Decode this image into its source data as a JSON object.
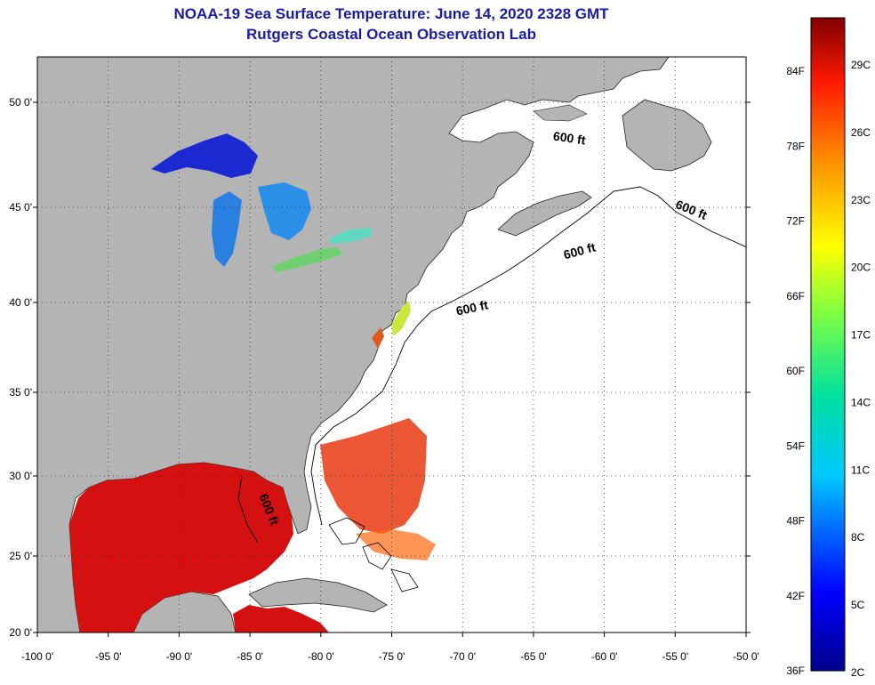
{
  "header": {
    "title": "NOAA-19 Sea Surface Temperature:  June 14, 2020 2328 GMT",
    "subtitle": "Rutgers Coastal Ocean Observation Lab"
  },
  "map": {
    "lon_ticks": [
      "-100 0'",
      "-95 0'",
      "-90 0'",
      "-85 0'",
      "-80 0'",
      "-75 0'",
      "-70 0'",
      "-65 0'",
      "-60 0'",
      "-55 0'",
      "-50 0'"
    ],
    "lat_ticks": [
      "50 0'",
      "45 0'",
      "40 0'",
      "35 0'",
      "30 0'",
      "25 0'",
      "20 0'"
    ],
    "contour_labels": [
      "600 ft",
      "600 ft",
      "600 ft",
      "600 ft",
      "600 ft"
    ]
  },
  "colorbar": {
    "fahrenheit": [
      "84F",
      "78F",
      "72F",
      "66F",
      "60F",
      "54F",
      "48F",
      "42F",
      "36F"
    ],
    "celsius": [
      "29C",
      "26C",
      "23C",
      "20C",
      "17C",
      "14C",
      "11C",
      "8C",
      "5C",
      "2C"
    ]
  },
  "colors": {
    "land": "#b4b4b4",
    "ocean": "#ffffff",
    "title": "#1a1aa6",
    "warm": "#e01010",
    "cold": "#0a1a9e"
  }
}
